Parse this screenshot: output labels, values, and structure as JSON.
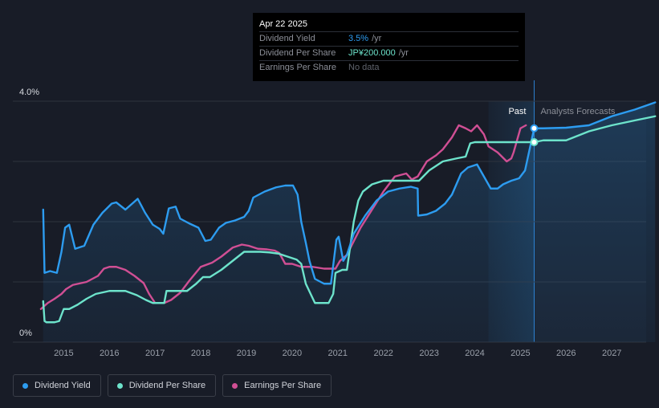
{
  "tooltip": {
    "date": "Apr 22 2025",
    "rows": [
      {
        "label": "Dividend Yield",
        "value": "3.5%",
        "unit": "/yr"
      },
      {
        "label": "Dividend Per Share",
        "value": "JP¥200.000",
        "unit": "/yr"
      },
      {
        "label": "Earnings Per Share",
        "value": "No data",
        "unit": ""
      }
    ]
  },
  "legend": [
    {
      "label": "Dividend Yield",
      "color": "#2d9cf0"
    },
    {
      "label": "Dividend Per Share",
      "color": "#6de3cb"
    },
    {
      "label": "Earnings Per Share",
      "color": "#d04f94"
    }
  ],
  "chart_data": {
    "type": "line",
    "title": "",
    "xlabel": "",
    "ylabel": "",
    "y_tick_labels": [
      "4.0%",
      "0%"
    ],
    "ylim": [
      0,
      4.0
    ],
    "xlim": [
      2014.0,
      2028.0
    ],
    "x_tick_labels": [
      "2015",
      "2016",
      "2017",
      "2018",
      "2019",
      "2020",
      "2021",
      "2022",
      "2023",
      "2024",
      "2025",
      "2026",
      "2027"
    ],
    "grid": true,
    "past_label": "Past",
    "forecast_label": "Analysts Forecasts",
    "past_region_start": 2024.3,
    "current_date": 2025.3,
    "series": [
      {
        "name": "Dividend Yield",
        "color": "#2d9cf0",
        "x": [
          2014.55,
          2014.58,
          2014.7,
          2014.85,
          2014.95,
          2015.03,
          2015.12,
          2015.25,
          2015.45,
          2015.65,
          2015.85,
          2016.05,
          2016.15,
          2016.35,
          2016.5,
          2016.62,
          2016.78,
          2016.95,
          2017.1,
          2017.18,
          2017.3,
          2017.45,
          2017.55,
          2017.75,
          2017.95,
          2018.1,
          2018.22,
          2018.4,
          2018.55,
          2018.75,
          2018.95,
          2019.05,
          2019.15,
          2019.4,
          2019.65,
          2019.85,
          2020.02,
          2020.12,
          2020.2,
          2020.3,
          2020.38,
          2020.5,
          2020.7,
          2020.85,
          2020.97,
          2021.02,
          2021.12,
          2021.2,
          2021.35,
          2021.6,
          2021.85,
          2022.1,
          2022.35,
          2022.6,
          2022.75,
          2022.76,
          2022.95,
          2023.15,
          2023.35,
          2023.5,
          2023.7,
          2023.85,
          2024.05,
          2024.2,
          2024.35,
          2024.5,
          2024.62,
          2024.8,
          2024.97,
          2025.1,
          2025.2,
          2025.3,
          2025.5,
          2026.0,
          2026.5,
          2027.0,
          2027.5,
          2027.95
        ],
        "y": [
          2.2,
          1.15,
          1.18,
          1.15,
          1.5,
          1.9,
          1.95,
          1.55,
          1.6,
          1.95,
          2.15,
          2.3,
          2.32,
          2.2,
          2.3,
          2.38,
          2.15,
          1.95,
          1.88,
          1.8,
          2.22,
          2.25,
          2.05,
          1.97,
          1.9,
          1.68,
          1.7,
          1.9,
          1.98,
          2.02,
          2.08,
          2.18,
          2.4,
          2.5,
          2.57,
          2.6,
          2.6,
          2.45,
          2.0,
          1.65,
          1.35,
          1.05,
          0.97,
          0.97,
          1.7,
          1.75,
          1.35,
          1.45,
          1.8,
          2.1,
          2.35,
          2.5,
          2.55,
          2.58,
          2.55,
          2.1,
          2.12,
          2.18,
          2.3,
          2.45,
          2.8,
          2.9,
          2.95,
          2.75,
          2.55,
          2.55,
          2.62,
          2.68,
          2.72,
          2.85,
          3.2,
          3.55,
          3.55,
          3.56,
          3.6,
          3.75,
          3.86,
          3.98
        ]
      },
      {
        "name": "Dividend Per Share",
        "color": "#6de3cb",
        "x": [
          2014.55,
          2014.58,
          2014.62,
          2014.8,
          2014.9,
          2015.0,
          2015.12,
          2015.3,
          2015.5,
          2015.7,
          2016.0,
          2016.35,
          2016.6,
          2016.8,
          2016.95,
          2017.1,
          2017.2,
          2017.25,
          2017.5,
          2017.7,
          2017.9,
          2018.05,
          2018.2,
          2018.45,
          2018.7,
          2018.95,
          2019.05,
          2019.3,
          2019.5,
          2019.7,
          2019.9,
          2020.1,
          2020.2,
          2020.3,
          2020.5,
          2020.8,
          2020.9,
          2020.95,
          2021.1,
          2021.2,
          2021.35,
          2021.45,
          2021.55,
          2021.75,
          2022.0,
          2022.3,
          2022.6,
          2022.78,
          2023.0,
          2023.3,
          2023.6,
          2023.8,
          2023.9,
          2024.0,
          2024.3,
          2025.3,
          2025.5,
          2026.0,
          2026.5,
          2027.0,
          2027.5,
          2027.95
        ],
        "y": [
          0.68,
          0.35,
          0.33,
          0.33,
          0.35,
          0.55,
          0.55,
          0.62,
          0.72,
          0.8,
          0.85,
          0.85,
          0.78,
          0.7,
          0.65,
          0.65,
          0.65,
          0.85,
          0.85,
          0.85,
          0.97,
          1.08,
          1.08,
          1.2,
          1.35,
          1.5,
          1.5,
          1.5,
          1.49,
          1.47,
          1.42,
          1.37,
          1.3,
          0.97,
          0.65,
          0.65,
          0.8,
          1.15,
          1.2,
          1.2,
          2.0,
          2.35,
          2.5,
          2.62,
          2.68,
          2.68,
          2.68,
          2.68,
          2.85,
          3.0,
          3.05,
          3.08,
          3.3,
          3.32,
          3.32,
          3.32,
          3.35,
          3.35,
          3.5,
          3.6,
          3.68,
          3.75
        ]
      },
      {
        "name": "Earnings Per Share",
        "color": "#d04f94",
        "x": [
          2014.5,
          2014.65,
          2014.8,
          2014.95,
          2015.05,
          2015.2,
          2015.5,
          2015.75,
          2015.88,
          2016.0,
          2016.15,
          2016.35,
          2016.55,
          2016.75,
          2016.87,
          2017.0,
          2017.2,
          2017.35,
          2017.55,
          2017.75,
          2018.0,
          2018.25,
          2018.45,
          2018.7,
          2018.9,
          2019.05,
          2019.25,
          2019.45,
          2019.62,
          2019.72,
          2019.85,
          2020.0,
          2020.2,
          2020.45,
          2020.7,
          2020.95,
          2021.05,
          2021.2,
          2021.5,
          2021.75,
          2022.0,
          2022.25,
          2022.5,
          2022.62,
          2022.75,
          2022.95,
          2023.15,
          2023.3,
          2023.5,
          2023.65,
          2023.8,
          2023.92,
          2024.05,
          2024.2,
          2024.3,
          2024.5,
          2024.7,
          2024.8,
          2024.85,
          2025.0,
          2025.12
        ],
        "y": [
          0.55,
          0.65,
          0.72,
          0.8,
          0.88,
          0.95,
          1.0,
          1.1,
          1.22,
          1.25,
          1.25,
          1.2,
          1.1,
          0.98,
          0.8,
          0.65,
          0.65,
          0.7,
          0.82,
          1.02,
          1.25,
          1.32,
          1.42,
          1.57,
          1.62,
          1.6,
          1.55,
          1.54,
          1.52,
          1.48,
          1.3,
          1.3,
          1.25,
          1.25,
          1.22,
          1.22,
          1.35,
          1.45,
          1.9,
          2.2,
          2.5,
          2.75,
          2.8,
          2.7,
          2.75,
          3.0,
          3.1,
          3.2,
          3.4,
          3.6,
          3.55,
          3.5,
          3.6,
          3.45,
          3.25,
          3.15,
          3.0,
          3.05,
          3.15,
          3.55,
          3.6
        ]
      }
    ],
    "markers": [
      {
        "series": "Dividend Yield",
        "x": 2025.3,
        "y": 3.55
      },
      {
        "series": "Dividend Per Share",
        "x": 2025.3,
        "y": 3.32
      }
    ]
  }
}
